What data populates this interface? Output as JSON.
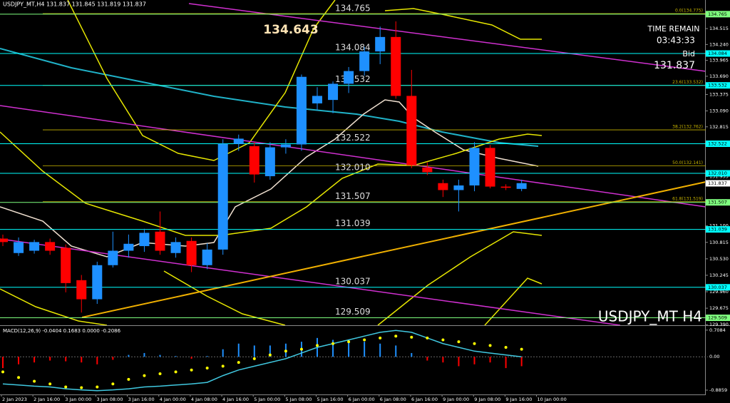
{
  "chart_data": [
    {
      "type": "candlestick",
      "header": "USDJPY_MT,H4  131.837 131.845 131.819 131.837",
      "title": "USDJPY_MT H4",
      "high_label": 134.643,
      "time_remain_label": "TIME REMAIN",
      "time_remain": "03:43:33",
      "bid_label": "Bid",
      "bid": 131.837,
      "bull_color": "#1e90ff",
      "bear_color": "#ff0000",
      "ylim": [
        129.38,
        135.01
      ],
      "yticks": [
        {
          "value": 134.515,
          "label": "134.515"
        },
        {
          "value": 134.24,
          "label": "134.240"
        },
        {
          "value": 133.965,
          "label": "133.965"
        },
        {
          "value": 133.69,
          "label": "133.690"
        },
        {
          "value": 133.375,
          "label": "133.375"
        },
        {
          "value": 133.09,
          "label": "133.090"
        },
        {
          "value": 132.815,
          "label": "132.815"
        },
        {
          "value": 131.955,
          "label": "131.955"
        },
        {
          "value": 131.1,
          "label": "131.100"
        },
        {
          "value": 130.815,
          "label": "130.815"
        },
        {
          "value": 130.53,
          "label": "130.530"
        },
        {
          "value": 130.245,
          "label": "130.245"
        },
        {
          "value": 129.96,
          "label": "129.960"
        },
        {
          "value": 129.675,
          "label": "129.675"
        },
        {
          "value": 129.39,
          "label": "129.390"
        }
      ],
      "levels": [
        {
          "value": 134.765,
          "label": "134.765",
          "color": "#7fff7f"
        },
        {
          "value": 134.084,
          "label": "134.084",
          "color": "#00ffff"
        },
        {
          "value": 133.532,
          "label": "133.532",
          "color": "#00ffff"
        },
        {
          "value": 132.522,
          "label": "132.522",
          "color": "#00ffff"
        },
        {
          "value": 132.01,
          "label": "132.010",
          "color": "#00ffff"
        },
        {
          "value": 131.507,
          "label": "131.507",
          "color": "#7fff7f"
        },
        {
          "value": 131.039,
          "label": "131.039",
          "color": "#00ffff"
        },
        {
          "value": 130.037,
          "label": "130.037",
          "color": "#00ffff"
        },
        {
          "value": 129.509,
          "label": "129.509",
          "color": "#7fff7f"
        }
      ],
      "fib_color": "#c8b400",
      "fibs": [
        {
          "value": 134.775,
          "label": "0.0(134.775)"
        },
        {
          "value": 133.532,
          "label": "23.6(133.532)"
        },
        {
          "value": 132.762,
          "label": "38.2(132.762)"
        },
        {
          "value": 132.141,
          "label": "50.0(132.141)"
        },
        {
          "value": 131.519,
          "label": "61.8(131.519)"
        }
      ],
      "x_labels": [
        "2 Jan 2023",
        "2 Jan 16:00",
        "3 Jan 00:00",
        "3 Jan 08:00",
        "3 Jan 16:00",
        "4 Jan 00:00",
        "4 Jan 08:00",
        "4 Jan 16:00",
        "5 Jan 00:00",
        "5 Jan 08:00",
        "5 Jan 16:00",
        "6 Jan 00:00",
        "6 Jan 08:00",
        "6 Jan 16:00",
        "9 Jan 00:00",
        "9 Jan 08:00",
        "9 Jan 16:00",
        "10 Jan 00:00"
      ],
      "open": [
        130.88,
        130.63,
        130.67,
        130.82,
        130.72,
        130.16,
        129.83,
        130.42,
        130.67,
        130.75,
        131.0,
        130.63,
        130.84,
        130.42,
        130.69,
        132.52,
        132.48,
        131.96,
        132.46,
        132.51,
        133.22,
        133.28,
        133.56,
        133.78,
        134.12,
        134.37,
        133.35,
        132.11,
        131.84,
        131.72,
        131.8,
        132.45,
        131.78,
        131.74
      ],
      "high": [
        130.95,
        130.9,
        130.86,
        130.88,
        130.78,
        130.25,
        130.48,
        131.0,
        130.95,
        131.05,
        131.35,
        130.9,
        130.9,
        130.8,
        132.6,
        132.68,
        132.55,
        132.55,
        132.6,
        133.72,
        133.5,
        133.6,
        133.85,
        134.2,
        134.55,
        134.64,
        133.8,
        132.2,
        131.9,
        131.9,
        132.55,
        132.5,
        131.82,
        131.9
      ],
      "low": [
        130.75,
        130.58,
        130.62,
        130.6,
        129.95,
        129.6,
        129.75,
        130.38,
        130.55,
        130.65,
        130.6,
        130.55,
        130.3,
        130.35,
        130.6,
        132.4,
        131.85,
        131.9,
        132.35,
        132.4,
        133.1,
        133.05,
        133.4,
        133.7,
        133.9,
        133.3,
        132.1,
        131.98,
        131.6,
        131.35,
        131.7,
        131.75,
        131.72,
        131.7
      ],
      "close": [
        130.82,
        130.82,
        130.82,
        130.67,
        130.11,
        129.83,
        130.42,
        130.67,
        130.79,
        130.98,
        130.67,
        130.82,
        130.42,
        130.69,
        132.52,
        132.61,
        131.99,
        132.46,
        132.51,
        133.68,
        133.35,
        133.56,
        133.78,
        134.12,
        134.37,
        133.35,
        132.15,
        132.03,
        131.72,
        131.8,
        132.45,
        131.78,
        131.76,
        131.84
      ]
    },
    {
      "type": "macd",
      "title": "MACD(12,26,9) -0.0404 0.1683 0.0000 -0.2086",
      "ylim": [
        -1.0,
        0.8
      ],
      "yticks": [
        0.7084,
        {
          "value": 0,
          "label": "0.00"
        },
        -0.8859
      ],
      "histogram": {
        "up_color": "#1e90ff",
        "down_color": "#ff0000",
        "values": [
          -0.3,
          -0.2,
          -0.15,
          -0.1,
          -0.12,
          -0.15,
          -0.2,
          -0.08,
          0.05,
          0.1,
          0.05,
          0.02,
          -0.05,
          0.02,
          0.2,
          0.35,
          0.3,
          0.3,
          0.35,
          0.4,
          0.5,
          0.45,
          0.45,
          0.4,
          0.35,
          0.3,
          0.1,
          -0.1,
          -0.15,
          -0.25,
          -0.2,
          -0.15,
          -0.3,
          -0.25
        ]
      },
      "signal": {
        "color": "#ffff00",
        "values": [
          -0.4,
          -0.55,
          -0.65,
          -0.72,
          -0.8,
          -0.82,
          -0.8,
          -0.72,
          -0.6,
          -0.5,
          -0.45,
          -0.4,
          -0.35,
          -0.3,
          -0.25,
          -0.15,
          -0.05,
          0.05,
          0.15,
          0.2,
          0.3,
          0.35,
          0.4,
          0.45,
          0.5,
          0.55,
          0.52,
          0.5,
          0.45,
          0.4,
          0.35,
          0.3,
          0.25,
          0.2
        ]
      },
      "main": {
        "color": "#40c8e0",
        "values": [
          -0.72,
          -0.75,
          -0.78,
          -0.8,
          -0.85,
          -0.88,
          -0.9,
          -0.88,
          -0.85,
          -0.8,
          -0.78,
          -0.75,
          -0.72,
          -0.68,
          -0.5,
          -0.35,
          -0.25,
          -0.15,
          -0.05,
          0.1,
          0.25,
          0.35,
          0.45,
          0.55,
          0.65,
          0.7,
          0.65,
          0.5,
          0.35,
          0.25,
          0.15,
          0.1,
          0.05,
          0.0
        ]
      }
    }
  ]
}
